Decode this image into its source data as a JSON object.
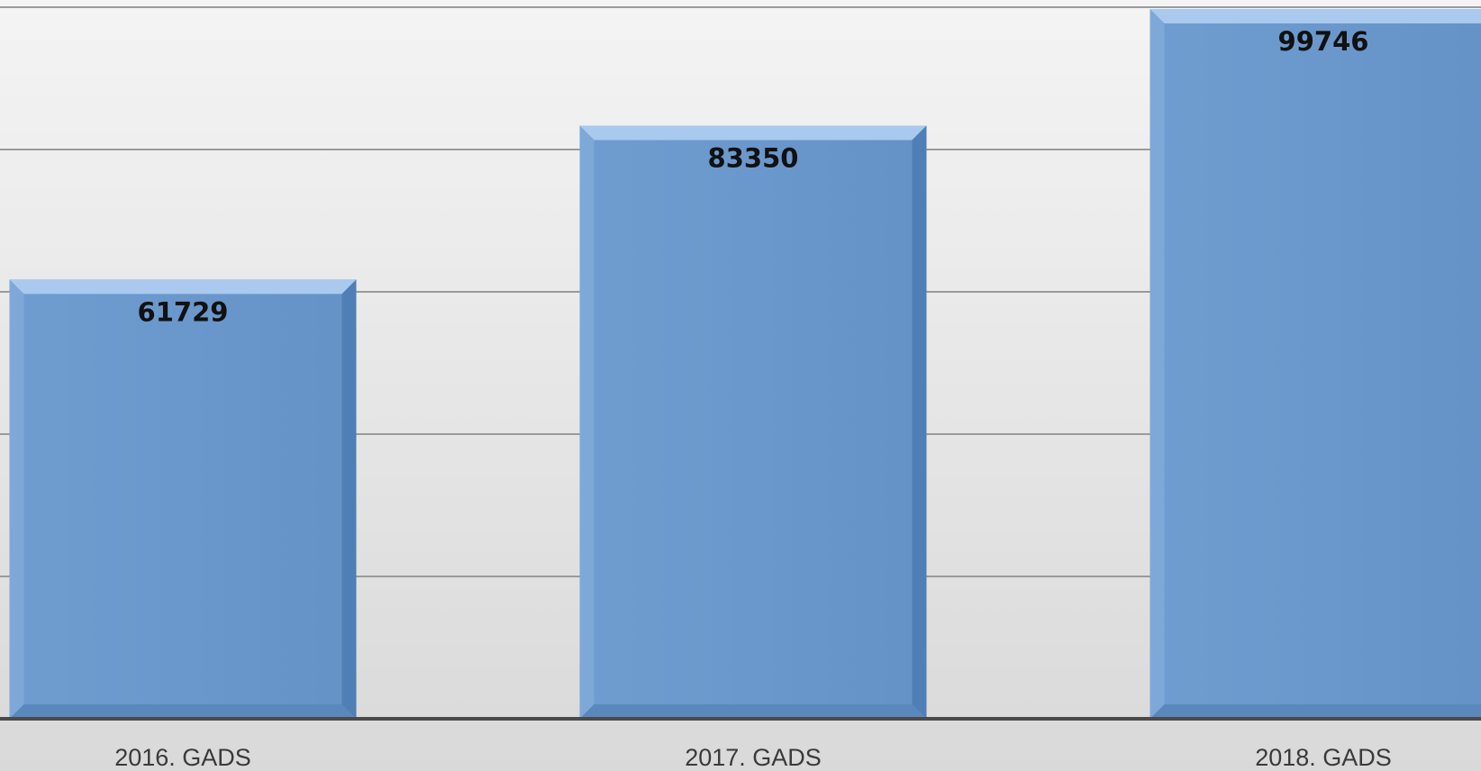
{
  "colors": {
    "bar_fill": "#6a98cc",
    "bar_light": "#a9c9ef",
    "bar_dark": "#4f7fb4",
    "background_top": "#f4f4f4",
    "background_bottom": "#d9d9d9",
    "gridline": "#9a9a9a",
    "axis": "#4a4a4a"
  },
  "chart_data": {
    "type": "bar",
    "categories": [
      "2016. GADS",
      "2017. GADS",
      "2018. GADS"
    ],
    "values": [
      61729,
      83350,
      99746
    ],
    "title": "",
    "xlabel": "",
    "ylabel": "",
    "ylim": [
      0,
      100000
    ],
    "gridlines": [
      20000,
      40000,
      60000,
      80000,
      100000
    ],
    "grid": true,
    "legend": "none",
    "data_labels": [
      "61729",
      "83350",
      "99746"
    ]
  }
}
